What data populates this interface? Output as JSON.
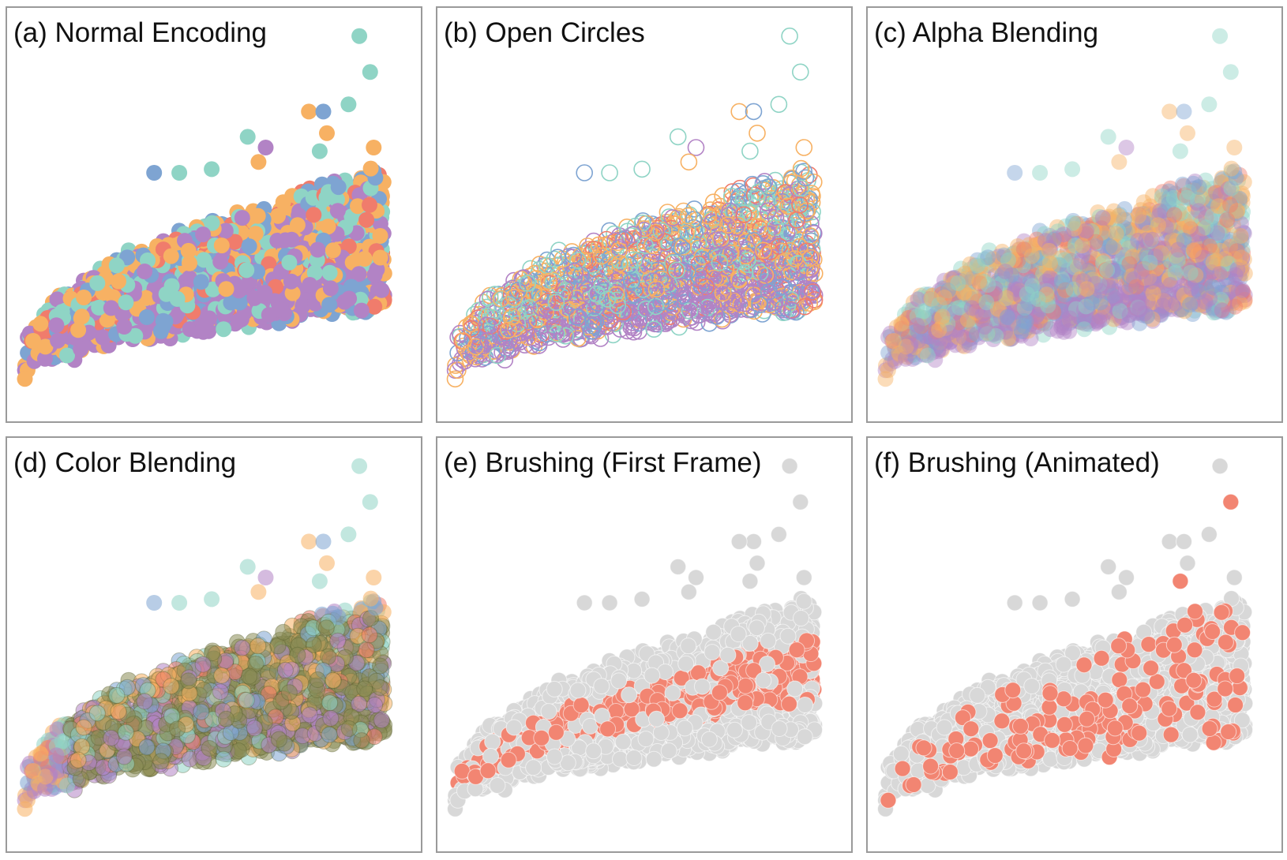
{
  "figure": {
    "panels": [
      {
        "title": "(a) Normal Encoding",
        "mode": "normal"
      },
      {
        "title": "(b) Open Circles",
        "mode": "open"
      },
      {
        "title": "(c) Alpha Blending",
        "mode": "alpha"
      },
      {
        "title": "(d) Color Blending",
        "mode": "blend"
      },
      {
        "title": "(e) Brushing (First Frame)",
        "mode": "brush-first"
      },
      {
        "title": "(f) Brushing (Animated)",
        "mode": "brush-animated"
      }
    ]
  },
  "colors": {
    "teal": "#8fd4c5",
    "orange": "#f7b163",
    "blue": "#7ea4d2",
    "purple": "#b283c5",
    "red": "#f07c6c",
    "gray": "#d8d8d8",
    "brushed": "#f28572",
    "blend_olive": "#8b8d55"
  },
  "chart_data": {
    "type": "scatter",
    "title": "",
    "xlabel": "",
    "ylabel": "",
    "xlim": [
      0,
      100
    ],
    "ylim": [
      0,
      100
    ],
    "grid": false,
    "legend": "none",
    "categories": [
      "teal",
      "orange",
      "blue",
      "purple",
      "red"
    ],
    "point_count": 1800,
    "distribution": "dense wedge rising from the bottom-left corner toward the upper-right, with a few sparse outliers at top-right",
    "outliers": [
      {
        "x": 93,
        "y": 97,
        "category": "teal"
      },
      {
        "x": 96,
        "y": 87,
        "category": "teal"
      },
      {
        "x": 90,
        "y": 78,
        "category": "teal"
      },
      {
        "x": 79,
        "y": 76,
        "category": "orange"
      },
      {
        "x": 83,
        "y": 76,
        "category": "blue"
      },
      {
        "x": 84,
        "y": 70,
        "category": "orange"
      },
      {
        "x": 82,
        "y": 65,
        "category": "teal"
      },
      {
        "x": 97,
        "y": 66,
        "category": "orange"
      },
      {
        "x": 62,
        "y": 69,
        "category": "teal"
      },
      {
        "x": 67,
        "y": 66,
        "category": "purple"
      },
      {
        "x": 65,
        "y": 62,
        "category": "orange"
      },
      {
        "x": 36,
        "y": 59,
        "category": "blue"
      },
      {
        "x": 43,
        "y": 59,
        "category": "teal"
      },
      {
        "x": 52,
        "y": 60,
        "category": "teal"
      }
    ]
  }
}
